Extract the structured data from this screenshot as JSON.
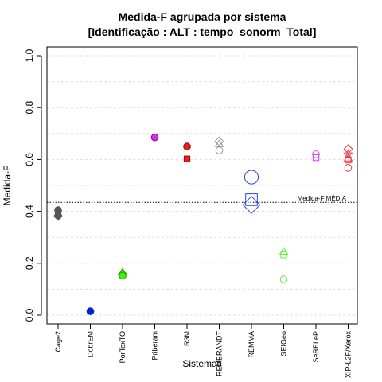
{
  "chart_data": {
    "type": "scatter",
    "title_line1": "Medida-F agrupada por sistema",
    "title_line2": "[Identificação : ALT : tempo_sonorm_Total]",
    "xlabel": "Sistemas",
    "ylabel": "Medida-F",
    "ylim": [
      0,
      1
    ],
    "yticks": [
      "0.0",
      "0.2",
      "0.4",
      "0.6",
      "0.8",
      "1.0"
    ],
    "grid": true,
    "categories": [
      "Cage2",
      "DobrEM",
      "PorTexTO",
      "Priberam",
      "R3M",
      "REMBRANDT",
      "REMMA",
      "SEIGeo",
      "SeRELeP",
      "XIP-L2F/Xerox"
    ],
    "mean_line": {
      "value": 0.435,
      "label": "Medida-F MÉDIA"
    },
    "points": [
      {
        "system": "Cage2",
        "value": 0.405,
        "shape": "circle",
        "color": "#555555",
        "fill": "#555555",
        "size": 1.0
      },
      {
        "system": "Cage2",
        "value": 0.398,
        "shape": "square",
        "color": "#555555",
        "fill": "#555555",
        "size": 1.0
      },
      {
        "system": "Cage2",
        "value": 0.392,
        "shape": "triangle",
        "color": "#555555",
        "fill": "#555555",
        "size": 1.0
      },
      {
        "system": "Cage2",
        "value": 0.382,
        "shape": "diamond",
        "color": "#555555",
        "fill": "#555555",
        "size": 1.0
      },
      {
        "system": "DobrEM",
        "value": 0.015,
        "shape": "circle",
        "color": "#0022cc",
        "fill": "#0022cc",
        "size": 1.0
      },
      {
        "system": "PorTexTO",
        "value": 0.165,
        "shape": "triangle",
        "color": "#22aa00",
        "fill": "#44ee11",
        "size": 1.0
      },
      {
        "system": "PorTexTO",
        "value": 0.158,
        "shape": "diamond",
        "color": "#22aa00",
        "fill": "#44ee11",
        "size": 1.0
      },
      {
        "system": "PorTexTO",
        "value": 0.152,
        "shape": "circle",
        "color": "#22aa00",
        "fill": "#44ee11",
        "size": 1.0
      },
      {
        "system": "Priberam",
        "value": 0.685,
        "shape": "circle",
        "color": "#9900aa",
        "fill": "#cc33dd",
        "size": 1.0
      },
      {
        "system": "R3M",
        "value": 0.65,
        "shape": "circle",
        "color": "#aa0000",
        "fill": "#dd2222",
        "size": 1.0
      },
      {
        "system": "R3M",
        "value": 0.602,
        "shape": "square",
        "color": "#aa0000",
        "fill": "#dd2222",
        "size": 1.0
      },
      {
        "system": "REMBRANDT",
        "value": 0.67,
        "shape": "diamond",
        "color": "#999999",
        "fill": "none",
        "size": 1.0
      },
      {
        "system": "REMBRANDT",
        "value": 0.66,
        "shape": "triangle",
        "color": "#999999",
        "fill": "none",
        "size": 1.0
      },
      {
        "system": "REMBRANDT",
        "value": 0.635,
        "shape": "circle",
        "color": "#999999",
        "fill": "none",
        "size": 1.0
      },
      {
        "system": "REMMA",
        "value": 0.532,
        "shape": "circle",
        "color": "#2244ee",
        "fill": "none",
        "size": 2.0
      },
      {
        "system": "REMMA",
        "value": 0.445,
        "shape": "square",
        "color": "#2244ee",
        "fill": "none",
        "size": 2.0
      },
      {
        "system": "REMMA",
        "value": 0.425,
        "shape": "diamond",
        "color": "#2244ee",
        "fill": "none",
        "size": 2.0
      },
      {
        "system": "SEIGeo",
        "value": 0.245,
        "shape": "triangle",
        "color": "#66ee33",
        "fill": "none",
        "size": 1.0
      },
      {
        "system": "SEIGeo",
        "value": 0.232,
        "shape": "square",
        "color": "#66ee33",
        "fill": "none",
        "size": 1.0
      },
      {
        "system": "SEIGeo",
        "value": 0.138,
        "shape": "circle",
        "color": "#66ee33",
        "fill": "none",
        "size": 1.0
      },
      {
        "system": "SeRELeP",
        "value": 0.62,
        "shape": "circle",
        "color": "#dd44ee",
        "fill": "none",
        "size": 1.0
      },
      {
        "system": "SeRELeP",
        "value": 0.607,
        "shape": "square",
        "color": "#dd44ee",
        "fill": "none",
        "size": 1.0
      },
      {
        "system": "XIP-L2F/Xerox",
        "value": 0.64,
        "shape": "diamond",
        "color": "#ee3344",
        "fill": "none",
        "size": 1.0
      },
      {
        "system": "XIP-L2F/Xerox",
        "value": 0.62,
        "shape": "star",
        "color": "#ee3344",
        "fill": "none",
        "size": 1.0
      },
      {
        "system": "XIP-L2F/Xerox",
        "value": 0.605,
        "shape": "triangle",
        "color": "#ee3344",
        "fill": "none",
        "size": 1.0
      },
      {
        "system": "XIP-L2F/Xerox",
        "value": 0.598,
        "shape": "square",
        "color": "#ee3344",
        "fill": "none",
        "size": 1.0
      },
      {
        "system": "XIP-L2F/Xerox",
        "value": 0.568,
        "shape": "circle",
        "color": "#ee3344",
        "fill": "none",
        "size": 1.0
      }
    ]
  }
}
